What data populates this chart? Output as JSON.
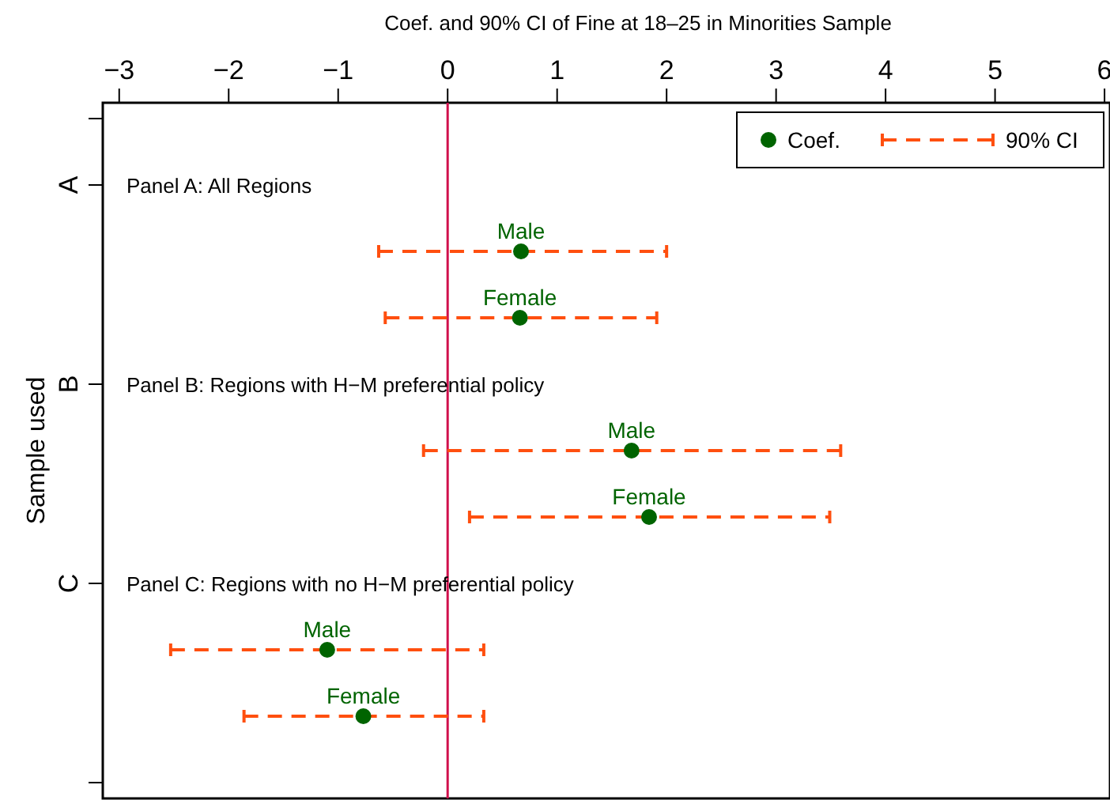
{
  "chart_data": {
    "type": "scatter",
    "orientation": "horizontal",
    "xlabel": "Coef. and 90% CI of Fine at 18–25 in Minorities Sample",
    "ylabel": "Sample used",
    "xlim": [
      -3.15,
      6.05
    ],
    "xticks": [
      -3,
      -2,
      -1,
      0,
      1,
      2,
      3,
      4,
      5,
      6
    ],
    "categories": [
      null,
      "A",
      null,
      null,
      "B",
      null,
      null,
      "C",
      null,
      null,
      null
    ],
    "series": [
      {
        "name": "Coef.",
        "marker": "circle",
        "line_style": "dashed",
        "color": "#006400",
        "values": [
          null,
          null,
          0.67,
          0.66,
          null,
          1.68,
          1.84,
          null,
          -1.1,
          -0.77,
          null
        ],
        "errors": [
          null,
          null,
          [
            -0.63,
            2.0
          ],
          [
            -0.57,
            1.91
          ],
          null,
          [
            -0.22,
            3.59
          ],
          [
            0.2,
            3.49
          ],
          null,
          [
            -2.53,
            0.33
          ],
          [
            -1.86,
            0.33
          ],
          null
        ],
        "value_labels": [
          null,
          null,
          "Male",
          "Female",
          null,
          "Male",
          "Female",
          null,
          "Male",
          "Female",
          null
        ]
      }
    ],
    "ref_lines": [
      {
        "axis": "x",
        "value": 0,
        "color": "#d0104c"
      }
    ],
    "annotations": [
      "Panel A: All Regions",
      "Panel B: Regions with H−M preferential policy",
      "Panel C: Regions with no H−M preferential policy",
      "90% CI"
    ],
    "grid": false,
    "legend": "top right"
  }
}
